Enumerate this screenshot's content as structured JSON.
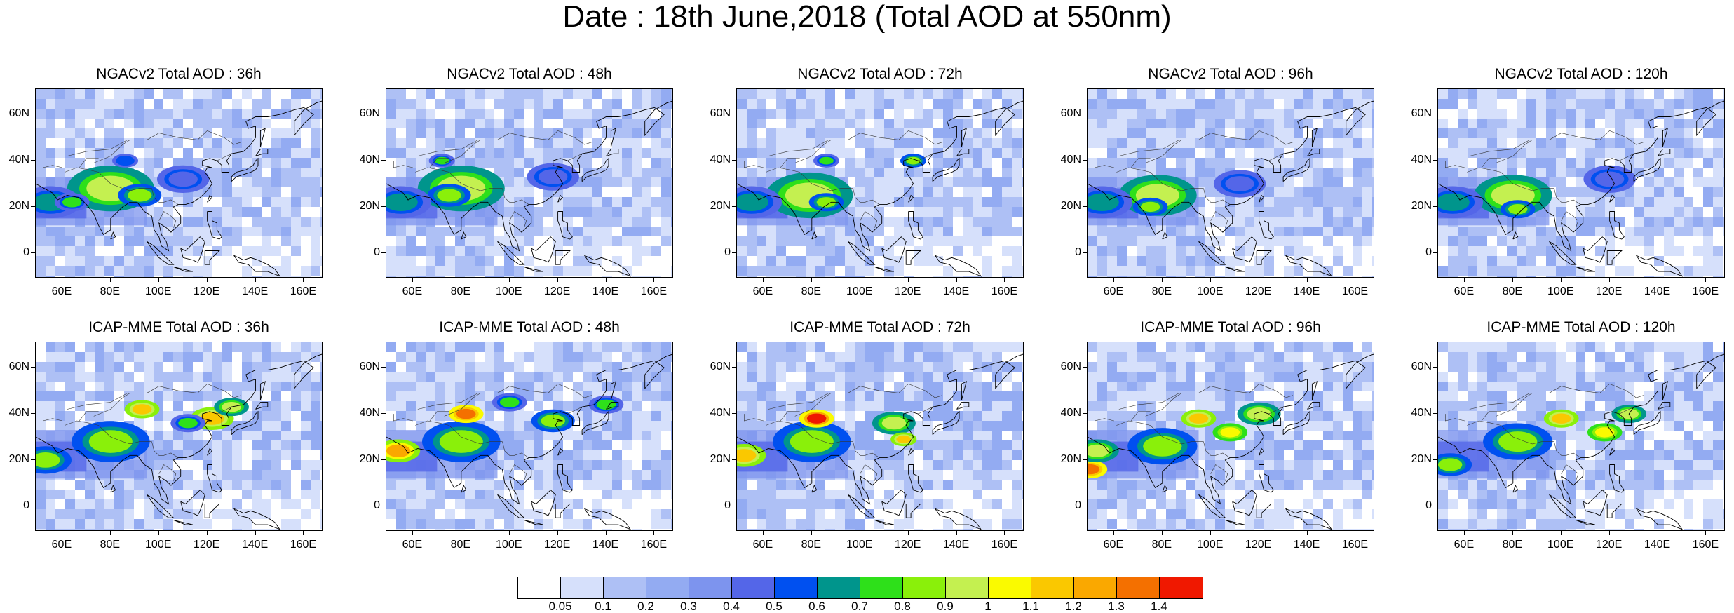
{
  "figure_title": "Date : 18th June,2018 (Total AOD at 550nm)",
  "x_ticks": [
    "60E",
    "80E",
    "100E",
    "120E",
    "140E",
    "160E"
  ],
  "y_ticks": [
    "60N",
    "40N",
    "20N",
    "0"
  ],
  "lon_range": [
    49,
    168
  ],
  "lat_range": [
    -11,
    71
  ],
  "panels": [
    {
      "title": "NGACv2 Total AOD : 36h",
      "hotspots": [
        {
          "lon": 80,
          "lat": 28,
          "aod": 0.9,
          "r": 10
        },
        {
          "lon": 92,
          "lat": 25,
          "aod": 0.8,
          "r": 5
        },
        {
          "lon": 55,
          "lat": 22,
          "aod": 0.6,
          "r": 7
        },
        {
          "lon": 64,
          "lat": 22,
          "aod": 0.7,
          "r": 4
        },
        {
          "lon": 86,
          "lat": 40,
          "aod": 0.5,
          "r": 3
        },
        {
          "lon": 110,
          "lat": 32,
          "aod": 0.4,
          "r": 6
        }
      ]
    },
    {
      "title": "NGACv2 Total AOD : 48h",
      "hotspots": [
        {
          "lon": 80,
          "lat": 28,
          "aod": 0.9,
          "r": 10
        },
        {
          "lon": 75,
          "lat": 25,
          "aod": 0.8,
          "r": 5
        },
        {
          "lon": 55,
          "lat": 22,
          "aod": 0.6,
          "r": 7
        },
        {
          "lon": 72,
          "lat": 40,
          "aod": 0.7,
          "r": 3
        },
        {
          "lon": 118,
          "lat": 33,
          "aod": 0.4,
          "r": 6
        }
      ]
    },
    {
      "title": "NGACv2 Total AOD : 72h",
      "hotspots": [
        {
          "lon": 79,
          "lat": 25,
          "aod": 0.9,
          "r": 10
        },
        {
          "lon": 86,
          "lat": 22,
          "aod": 0.8,
          "r": 4
        },
        {
          "lon": 55,
          "lat": 22,
          "aod": 0.6,
          "r": 7
        },
        {
          "lon": 86,
          "lat": 40,
          "aod": 0.7,
          "r": 3
        },
        {
          "lon": 122,
          "lat": 40,
          "aod": 0.8,
          "r": 3
        }
      ]
    },
    {
      "title": "NGACv2 Total AOD : 96h",
      "hotspots": [
        {
          "lon": 78,
          "lat": 25,
          "aod": 0.9,
          "r": 9
        },
        {
          "lon": 55,
          "lat": 22,
          "aod": 0.6,
          "r": 7
        },
        {
          "lon": 75,
          "lat": 20,
          "aod": 0.8,
          "r": 4
        },
        {
          "lon": 112,
          "lat": 30,
          "aod": 0.4,
          "r": 6
        }
      ]
    },
    {
      "title": "NGACv2 Total AOD : 120h",
      "hotspots": [
        {
          "lon": 80,
          "lat": 25,
          "aod": 0.9,
          "r": 9
        },
        {
          "lon": 55,
          "lat": 22,
          "aod": 0.6,
          "r": 7
        },
        {
          "lon": 82,
          "lat": 19,
          "aod": 0.8,
          "r": 4
        },
        {
          "lon": 120,
          "lat": 32,
          "aod": 0.4,
          "r": 6
        }
      ]
    },
    {
      "title": "ICAP-MME Total AOD : 36h",
      "hotspots": [
        {
          "lon": 80,
          "lat": 28,
          "aod": 0.8,
          "r": 9
        },
        {
          "lon": 53,
          "lat": 20,
          "aod": 0.8,
          "r": 6
        },
        {
          "lon": 93,
          "lat": 42,
          "aod": 1.1,
          "r": 4
        },
        {
          "lon": 122,
          "lat": 38,
          "aod": 1.1,
          "r": 5
        },
        {
          "lon": 130,
          "lat": 43,
          "aod": 0.9,
          "r": 4
        },
        {
          "lon": 112,
          "lat": 36,
          "aod": 0.7,
          "r": 4
        }
      ]
    },
    {
      "title": "ICAP-MME Total AOD : 48h",
      "hotspots": [
        {
          "lon": 80,
          "lat": 28,
          "aod": 0.8,
          "r": 9
        },
        {
          "lon": 82,
          "lat": 40,
          "aod": 1.3,
          "r": 4
        },
        {
          "lon": 54,
          "lat": 24,
          "aod": 1.2,
          "r": 5
        },
        {
          "lon": 118,
          "lat": 37,
          "aod": 0.8,
          "r": 5
        },
        {
          "lon": 100,
          "lat": 45,
          "aod": 0.7,
          "r": 4
        },
        {
          "lon": 140,
          "lat": 44,
          "aod": 0.7,
          "r": 4
        }
      ]
    },
    {
      "title": "ICAP-MME Total AOD : 72h",
      "hotspots": [
        {
          "lon": 80,
          "lat": 28,
          "aod": 0.8,
          "r": 9
        },
        {
          "lon": 82,
          "lat": 38,
          "aod": 1.4,
          "r": 4
        },
        {
          "lon": 52,
          "lat": 22,
          "aod": 1.1,
          "r": 5
        },
        {
          "lon": 114,
          "lat": 36,
          "aod": 0.9,
          "r": 5
        },
        {
          "lon": 118,
          "lat": 29,
          "aod": 1.1,
          "r": 3
        }
      ]
    },
    {
      "title": "ICAP-MME Total AOD : 96h",
      "hotspots": [
        {
          "lon": 80,
          "lat": 26,
          "aod": 0.8,
          "r": 8
        },
        {
          "lon": 50,
          "lat": 16,
          "aod": 1.3,
          "r": 4
        },
        {
          "lon": 53,
          "lat": 24,
          "aod": 0.9,
          "r": 5
        },
        {
          "lon": 95,
          "lat": 38,
          "aod": 1.1,
          "r": 4
        },
        {
          "lon": 120,
          "lat": 40,
          "aod": 0.9,
          "r": 5
        },
        {
          "lon": 108,
          "lat": 32,
          "aod": 1.0,
          "r": 4
        }
      ]
    },
    {
      "title": "ICAP-MME Total AOD : 120h",
      "hotspots": [
        {
          "lon": 82,
          "lat": 28,
          "aod": 0.8,
          "r": 8
        },
        {
          "lon": 54,
          "lat": 18,
          "aod": 0.8,
          "r": 5
        },
        {
          "lon": 100,
          "lat": 38,
          "aod": 1.1,
          "r": 4
        },
        {
          "lon": 118,
          "lat": 32,
          "aod": 1.0,
          "r": 4
        },
        {
          "lon": 128,
          "lat": 40,
          "aod": 0.9,
          "r": 4
        }
      ]
    }
  ],
  "colorbar": {
    "colors": [
      "#ffffff",
      "#d6e0fb",
      "#aec0f5",
      "#93abf2",
      "#7d94ee",
      "#5466e8",
      "#0050f0",
      "#00958c",
      "#2ee01a",
      "#8af00a",
      "#c4f050",
      "#fafa00",
      "#fac800",
      "#faa800",
      "#f47000",
      "#f01800"
    ],
    "labels": [
      "0.05",
      "0.1",
      "0.2",
      "0.3",
      "0.4",
      "0.5",
      "0.6",
      "0.7",
      "0.8",
      "0.9",
      "1",
      "1.1",
      "1.2",
      "1.3",
      "1.4"
    ],
    "levels": [
      0.05,
      0.1,
      0.2,
      0.3,
      0.4,
      0.5,
      0.6,
      0.7,
      0.8,
      0.9,
      1,
      1.1,
      1.2,
      1.3,
      1.4
    ]
  }
}
